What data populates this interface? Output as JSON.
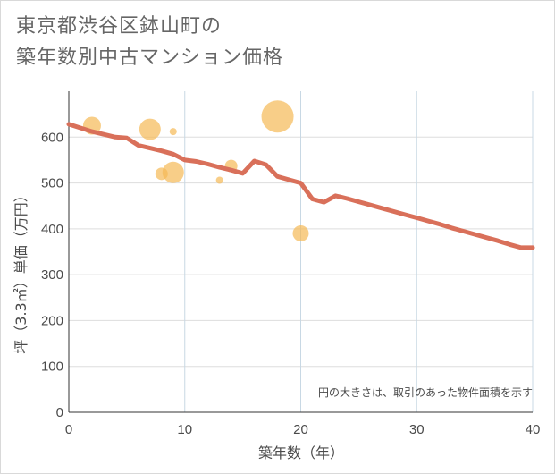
{
  "title": {
    "line1": "東京都渋谷区鉢山町の",
    "line2": "築年数別中古マンション価格"
  },
  "chart_data": {
    "type": "scatter",
    "title": "東京都渋谷区鉢山町の築年数別中古マンション価格",
    "xlabel": "築年数（年）",
    "ylabel": "坪（3.3㎡）単価（万円）",
    "xlim": [
      0,
      40
    ],
    "ylim": [
      0,
      700
    ],
    "x_ticks": [
      0,
      10,
      20,
      30,
      40
    ],
    "y_ticks": [
      0,
      100,
      200,
      300,
      400,
      500,
      600
    ],
    "grid": true,
    "note": "円の大きさは、取引のあった物件面積を示す",
    "colors": {
      "bubble": "#f5b955",
      "line": "#d9705a"
    },
    "points": [
      {
        "x": 2,
        "y": 625,
        "size": 10
      },
      {
        "x": 7,
        "y": 617,
        "size": 12
      },
      {
        "x": 8,
        "y": 520,
        "size": 7
      },
      {
        "x": 9,
        "y": 612,
        "size": 4
      },
      {
        "x": 9,
        "y": 523,
        "size": 12
      },
      {
        "x": 13,
        "y": 506,
        "size": 4
      },
      {
        "x": 14,
        "y": 537,
        "size": 7
      },
      {
        "x": 18,
        "y": 645,
        "size": 18
      },
      {
        "x": 20,
        "y": 390,
        "size": 9
      }
    ],
    "series": [
      {
        "name": "trend",
        "x": [
          0,
          2,
          4,
          5,
          6,
          7,
          8,
          9,
          10,
          11,
          12,
          13,
          14,
          15,
          16,
          17,
          18,
          19,
          20,
          21,
          22,
          23,
          24,
          25,
          26,
          27,
          28,
          29,
          30,
          31,
          32,
          33,
          34,
          35,
          36,
          37,
          38,
          39,
          40
        ],
        "y": [
          628,
          612,
          600,
          598,
          582,
          576,
          570,
          563,
          550,
          547,
          541,
          534,
          528,
          521,
          548,
          540,
          514,
          507,
          500,
          465,
          458,
          472,
          466,
          459,
          452,
          445,
          438,
          431,
          424,
          417,
          410,
          402,
          395,
          388,
          381,
          374,
          366,
          359,
          359
        ]
      }
    ]
  }
}
